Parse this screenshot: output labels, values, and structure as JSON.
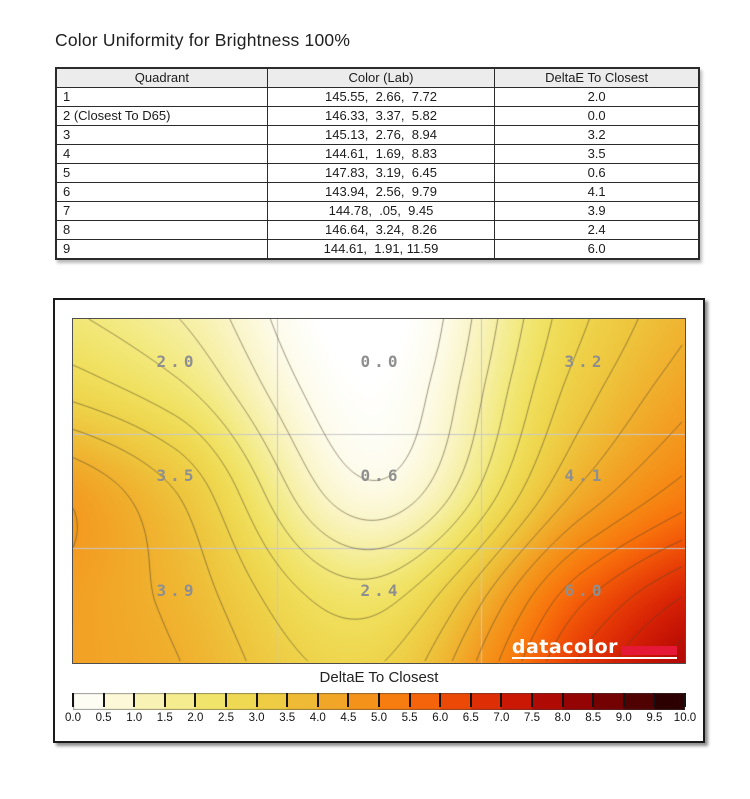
{
  "page": {
    "title": "Color Uniformity for Brightness 100%"
  },
  "table": {
    "headers": [
      "Quadrant",
      "Color (Lab)",
      "DeltaE To Closest"
    ],
    "rows": [
      {
        "quadrant": "1",
        "lab": "145.55,  2.66,  7.72",
        "delta": "2.0"
      },
      {
        "quadrant": "2 (Closest To D65)",
        "lab": "146.33,  3.37,  5.82",
        "delta": "0.0"
      },
      {
        "quadrant": "3",
        "lab": "145.13,  2.76,  8.94",
        "delta": "3.2"
      },
      {
        "quadrant": "4",
        "lab": "144.61,  1.69,  8.83",
        "delta": "3.5"
      },
      {
        "quadrant": "5",
        "lab": "147.83,  3.19,  6.45",
        "delta": "0.6"
      },
      {
        "quadrant": "6",
        "lab": "143.94,  2.56,  9.79",
        "delta": "4.1"
      },
      {
        "quadrant": "7",
        "lab": "144.78,  .05,  9.45",
        "delta": "3.9"
      },
      {
        "quadrant": "8",
        "lab": "146.64,  3.24,  8.26",
        "delta": "2.4"
      },
      {
        "quadrant": "9",
        "lab": "144.61,  1.91, 11.59",
        "delta": "6.0"
      }
    ]
  },
  "chart_data": {
    "type": "heatmap",
    "title": "DeltaE To Closest",
    "grid_rows": 3,
    "grid_cols": 3,
    "values": [
      [
        2.0,
        0.0,
        3.2
      ],
      [
        3.5,
        0.6,
        4.1
      ],
      [
        3.9,
        2.4,
        6.0
      ]
    ],
    "cell_labels": [
      "2.0",
      "0.0",
      "3.2",
      "3.5",
      "0.6",
      "4.1",
      "3.9",
      "2.4",
      "6.0"
    ],
    "contour_interval": 0.5,
    "scale_range": [
      0,
      10
    ],
    "gridline_color": "#c8c8c8",
    "contour_line_color": "rgba(80,68,40,0.55)",
    "label_color": "#8f8f8f",
    "logo_text": "datacolor",
    "logo_bar_color": "#e51837",
    "colorbar": {
      "ticks": [
        "0.0",
        "0.5",
        "1.0",
        "1.5",
        "2.0",
        "2.5",
        "3.0",
        "3.5",
        "4.0",
        "4.5",
        "5.0",
        "5.5",
        "6.0",
        "6.5",
        "7.0",
        "7.5",
        "8.0",
        "8.5",
        "9.0",
        "9.5",
        "10.0"
      ],
      "colormap": [
        [
          0.0,
          "#ffffff"
        ],
        [
          0.5,
          "#fdfbe9"
        ],
        [
          1.0,
          "#faf5c8"
        ],
        [
          1.5,
          "#f6efa2"
        ],
        [
          2.0,
          "#f2e87a"
        ],
        [
          2.5,
          "#f0df5c"
        ],
        [
          3.0,
          "#eed34a"
        ],
        [
          3.5,
          "#eec43c"
        ],
        [
          4.0,
          "#f0b02e"
        ],
        [
          4.5,
          "#f39b20"
        ],
        [
          5.0,
          "#f68813"
        ],
        [
          5.5,
          "#f8720c"
        ],
        [
          6.0,
          "#f25708"
        ],
        [
          6.5,
          "#e63b06"
        ],
        [
          7.0,
          "#d62105"
        ],
        [
          7.5,
          "#be0f04"
        ],
        [
          8.0,
          "#a30604"
        ],
        [
          8.5,
          "#850304"
        ],
        [
          9.0,
          "#630202"
        ],
        [
          9.5,
          "#3e0101"
        ],
        [
          10.0,
          "#1a0000"
        ]
      ]
    }
  }
}
